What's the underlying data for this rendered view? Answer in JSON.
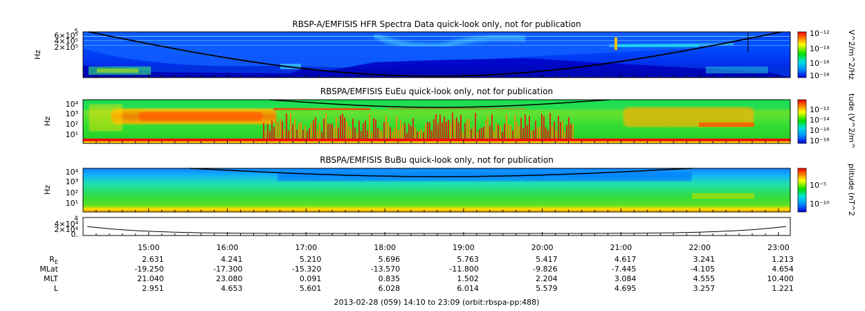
{
  "chart_data": [
    {
      "type": "heatmap",
      "title": "RBSP-A/EMFISIS  HFR Spectra Data quick-look only, not for publication",
      "ylabel": "Hz",
      "yticks": [
        "6×10⁵",
        "4×10⁵",
        "2×10⁵"
      ],
      "ytop_tick": "5",
      "colorbar_label": "V^2/m^2/Hz",
      "colorbar_ticks": [
        "10⁻¹²",
        "10⁻¹⁴",
        "10⁻¹⁶",
        "10⁻¹⁸"
      ],
      "colorbar_range": [
        -18,
        -12
      ]
    },
    {
      "type": "heatmap",
      "title": "RBSPA/EMFISIS  EuEu quick-look only, not for publication",
      "ylabel": "Hz",
      "yticks": [
        "10⁴",
        "10³",
        "10²",
        "10¹"
      ],
      "colorbar_label": "tude (V^2/m^",
      "colorbar_ticks": [
        "10⁻¹²",
        "10⁻¹⁴",
        "10⁻¹⁶",
        "10⁻¹⁸"
      ],
      "colorbar_range": [
        -18,
        -12
      ]
    },
    {
      "type": "heatmap",
      "title": "RBSPA/EMFISIS  BuBu quick-look only, not for publication",
      "ylabel": "Hz",
      "yticks": [
        "10⁴",
        "10³",
        "10²",
        "10¹"
      ],
      "colorbar_label": "plitude (nT^2",
      "colorbar_ticks": [
        "10⁻⁵",
        "10⁻¹⁰"
      ],
      "colorbar_range": [
        -12,
        -3
      ]
    },
    {
      "type": "line",
      "title": "",
      "yticks": [
        "4×10⁴",
        "2×10⁴",
        "0."
      ],
      "ytop_tick": "4"
    }
  ],
  "xaxis": {
    "ticks": [
      "15:00",
      "16:00",
      "17:00",
      "18:00",
      "19:00",
      "20:00",
      "21:00",
      "22:00",
      "23:00"
    ],
    "range_hours": [
      14.1667,
      23.15
    ],
    "tick_hours": [
      15,
      16,
      17,
      18,
      19,
      20,
      21,
      22,
      23
    ]
  },
  "ephemeris": [
    {
      "label": "R",
      "sub": "E",
      "values": [
        "2.631",
        "4.241",
        "5.210",
        "5.696",
        "5.763",
        "5.417",
        "4.617",
        "3.241",
        "1.213"
      ]
    },
    {
      "label": "MLat",
      "sub": "",
      "values": [
        "-19.250",
        "-17.300",
        "-15.320",
        "-13.570",
        "-11.800",
        "-9.826",
        "-7.445",
        "-4.105",
        "4.654"
      ]
    },
    {
      "label": "MLT",
      "sub": "",
      "values": [
        "21.040",
        "23.080",
        "0.091",
        "0.835",
        "1.502",
        "2.204",
        "3.084",
        "4.555",
        "10.400"
      ]
    },
    {
      "label": "L",
      "sub": "",
      "values": [
        "2.951",
        "4.653",
        "5.601",
        "6.028",
        "6.014",
        "5.579",
        "4.695",
        "3.257",
        "1.221"
      ]
    }
  ],
  "footer": "2013-02-28 (059) 14:10 to 23:09 (orbit:rbspa-pp:488)",
  "colors": {
    "axis": "#000000",
    "background": "#ffffff"
  }
}
